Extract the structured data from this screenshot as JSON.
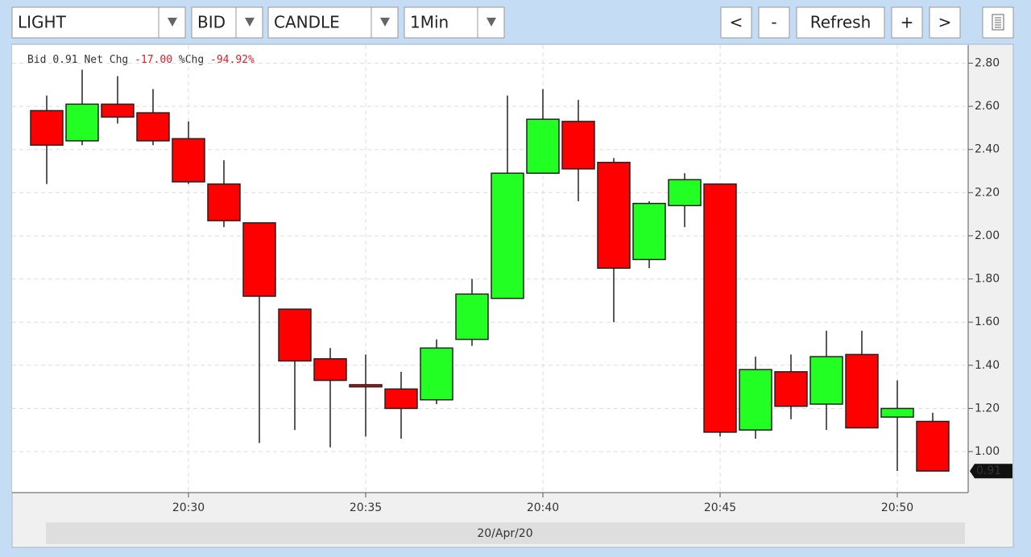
{
  "toolbar": {
    "dropdowns": [
      "LIGHT",
      "BID",
      "CANDLE",
      "1Min"
    ],
    "buttons": [
      "<",
      "-",
      "Refresh",
      "+",
      ">"
    ]
  },
  "info": {
    "bid_label": "Bid",
    "bid": "0.91",
    "net_label": "Net Chg",
    "net": "-17.00",
    "pct_label": "%Chg",
    "pct": "-94.92%"
  },
  "chart_data": {
    "type": "candlestick",
    "categories": [
      null,
      null,
      null,
      null,
      "20:30",
      null,
      null,
      null,
      null,
      "20:35",
      null,
      null,
      null,
      null,
      "20:40",
      null,
      null,
      null,
      null,
      "20:45",
      null,
      null,
      null,
      null,
      "20:50",
      null
    ],
    "open": [
      2.58,
      2.44,
      2.61,
      2.57,
      2.45,
      2.24,
      2.06,
      1.66,
      1.43,
      1.31,
      1.29,
      1.24,
      1.52,
      1.71,
      2.29,
      2.53,
      2.34,
      1.89,
      2.14,
      2.24,
      1.1,
      1.37,
      1.22,
      1.45,
      1.16,
      1.14
    ],
    "high": [
      2.65,
      2.77,
      2.74,
      2.68,
      2.53,
      2.35,
      2.06,
      1.66,
      1.48,
      1.45,
      1.37,
      1.52,
      1.8,
      2.65,
      2.68,
      2.63,
      2.36,
      2.16,
      2.29,
      2.24,
      1.44,
      1.45,
      1.56,
      1.56,
      1.33,
      1.18
    ],
    "low": [
      2.24,
      2.42,
      2.52,
      2.42,
      2.24,
      2.04,
      1.04,
      1.1,
      1.02,
      1.07,
      1.06,
      1.22,
      1.49,
      1.71,
      2.29,
      2.16,
      1.6,
      1.85,
      2.04,
      1.07,
      1.06,
      1.15,
      1.1,
      1.11,
      0.91,
      0.91
    ],
    "close": [
      2.42,
      2.61,
      2.55,
      2.44,
      2.25,
      2.07,
      1.72,
      1.42,
      1.33,
      1.3,
      1.2,
      1.48,
      1.73,
      2.29,
      2.54,
      2.31,
      1.85,
      2.15,
      2.26,
      1.09,
      1.38,
      1.21,
      1.44,
      1.11,
      1.2,
      0.91
    ],
    "up_color": "#22ff22",
    "down_color": "#ff0000",
    "ylim": [
      0.81,
      2.88
    ],
    "yticks": [
      {
        "value": 1.0,
        "label": "1.00"
      },
      {
        "value": 1.2,
        "label": "1.20"
      },
      {
        "value": 1.4,
        "label": "1.40"
      },
      {
        "value": 1.6,
        "label": "1.60"
      },
      {
        "value": 1.8,
        "label": "1.80"
      },
      {
        "value": 2.0,
        "label": "2.00"
      },
      {
        "value": 2.2,
        "label": "2.20"
      },
      {
        "value": 2.4,
        "label": "2.40"
      },
      {
        "value": 2.6,
        "label": "2.60"
      },
      {
        "value": 2.8,
        "label": "2.80"
      }
    ],
    "grid": true,
    "x_label": "20/Apr/20"
  }
}
